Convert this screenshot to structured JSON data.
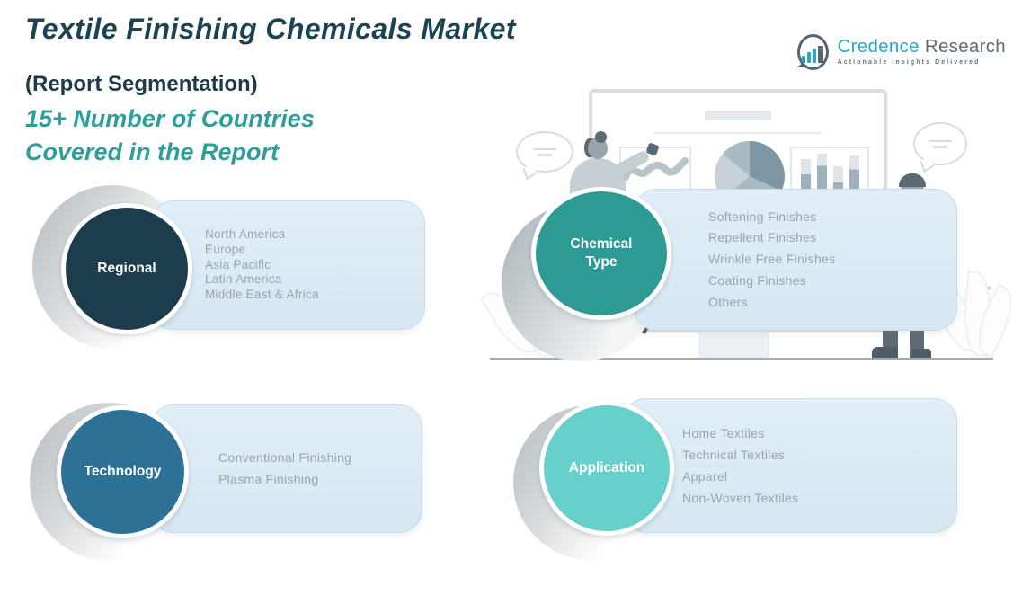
{
  "header": {
    "title": "Textile Finishing Chemicals Market",
    "subtitle": "(Report Segmentation)",
    "highlight_line1": "15+ Number of Countries",
    "highlight_line2": "Covered in the Report"
  },
  "logo": {
    "brand_primary": "Credence",
    "brand_secondary": "Research",
    "tagline": "Actionable Insights Delivered"
  },
  "segments": [
    {
      "id": "regional",
      "label": "Regional",
      "color": "#1e3d4c",
      "items": [
        "North America",
        "Europe",
        "Asia Pacific",
        "Latin America",
        "Middle East & Africa"
      ]
    },
    {
      "id": "chemical-type",
      "label": "Chemical Type",
      "color": "#2d9b94",
      "items": [
        "Softening Finishes",
        "Repellent Finishes",
        "Wrinkle Free Finishes",
        "Coating Finishes",
        "Others"
      ]
    },
    {
      "id": "technology",
      "label": "Technology",
      "color": "#2d7296",
      "items": [
        "Conventional Finishing",
        "Plasma Finishing"
      ]
    },
    {
      "id": "application",
      "label": "Application",
      "color": "#68d0ca",
      "items": [
        "Home Textiles",
        "Technical Textiles",
        "Apparel",
        "Non-Woven Textiles"
      ]
    }
  ],
  "colors": {
    "title_text": "#1d4353",
    "accent_teal": "#2f9e9b",
    "panel_background": "#dbe9f4",
    "list_text": "#9aa4ab",
    "logo_primary": "#2ba9c4",
    "logo_secondary": "#5f6b74"
  }
}
